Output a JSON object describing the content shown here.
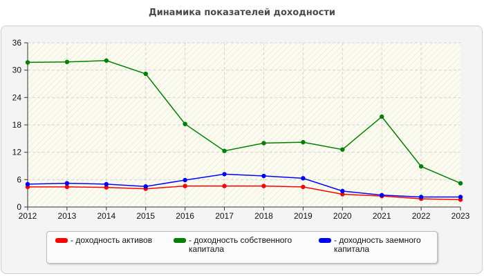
{
  "chart_data": {
    "type": "line",
    "title": "Динамика показателей доходности",
    "xlabel": "",
    "ylabel": "",
    "x": [
      "2012",
      "2013",
      "2014",
      "2015",
      "2016",
      "2017",
      "2018",
      "2019",
      "2020",
      "2021",
      "2022",
      "2023"
    ],
    "ylim": [
      0,
      36
    ],
    "yticks": [
      "0",
      "6",
      "12",
      "18",
      "24",
      "30",
      "36"
    ],
    "grid": true,
    "legend_position": "bottom",
    "series": [
      {
        "name": "- доходность активов",
        "color": "#ff0000",
        "values": [
          4.4,
          4.4,
          4.3,
          4.0,
          4.6,
          4.6,
          4.6,
          4.4,
          2.8,
          2.4,
          1.8,
          1.6
        ]
      },
      {
        "name": "- доходность собственного капитала",
        "color": "#008000",
        "values": [
          31.7,
          31.8,
          32.1,
          29.2,
          18.2,
          12.3,
          14.0,
          14.2,
          12.6,
          19.8,
          8.9,
          5.2
        ]
      },
      {
        "name": "- доходность заемного капитала",
        "color": "#0000ff",
        "values": [
          5.0,
          5.2,
          5.0,
          4.5,
          5.9,
          7.2,
          6.8,
          6.3,
          3.5,
          2.6,
          2.2,
          2.2
        ]
      }
    ]
  }
}
